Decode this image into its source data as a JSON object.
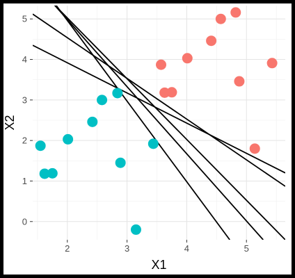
{
  "chart_data": {
    "type": "scatter",
    "xlabel": "X1",
    "ylabel": "X2",
    "xlim": [
      1.42,
      5.65
    ],
    "ylim": [
      -0.45,
      5.33
    ],
    "x_ticks": [
      2,
      3,
      4,
      5
    ],
    "y_ticks": [
      0,
      1,
      2,
      3,
      4,
      5
    ],
    "x_tick_labels": [
      "2",
      "3",
      "4",
      "5"
    ],
    "y_tick_labels": [
      "0",
      "1",
      "2",
      "3",
      "4",
      "5"
    ],
    "grid": true,
    "legend": "none",
    "series": [
      {
        "color": "#00bfc4",
        "points": [
          {
            "x": 1.55,
            "y": 1.87
          },
          {
            "x": 1.62,
            "y": 1.18
          },
          {
            "x": 1.75,
            "y": 1.19
          },
          {
            "x": 2.01,
            "y": 2.03
          },
          {
            "x": 2.42,
            "y": 2.46
          },
          {
            "x": 2.58,
            "y": 3.0
          },
          {
            "x": 2.84,
            "y": 3.17
          },
          {
            "x": 2.89,
            "y": 1.45
          },
          {
            "x": 3.15,
            "y": -0.2
          },
          {
            "x": 3.44,
            "y": 1.92
          }
        ]
      },
      {
        "color": "#f8766d",
        "points": [
          {
            "x": 3.57,
            "y": 3.87
          },
          {
            "x": 3.63,
            "y": 3.18
          },
          {
            "x": 3.75,
            "y": 3.19
          },
          {
            "x": 4.01,
            "y": 4.03
          },
          {
            "x": 4.41,
            "y": 4.46
          },
          {
            "x": 4.57,
            "y": 5.0
          },
          {
            "x": 4.82,
            "y": 5.16
          },
          {
            "x": 4.88,
            "y": 3.46
          },
          {
            "x": 5.14,
            "y": 1.8
          },
          {
            "x": 5.43,
            "y": 3.91
          }
        ]
      }
    ],
    "lines": [
      {
        "x1": 1.42,
        "y1": 4.35,
        "x2": 5.65,
        "y2": 1.2
      },
      {
        "x1": 1.42,
        "y1": 5.12,
        "x2": 5.65,
        "y2": 0.87
      },
      {
        "x1": 1.75,
        "y1": 5.4,
        "x2": 5.65,
        "y2": -0.45
      },
      {
        "x1": 1.75,
        "y1": 5.4,
        "x2": 5.28,
        "y2": -0.45
      },
      {
        "x1": 1.78,
        "y1": 5.4,
        "x2": 4.72,
        "y2": -0.45
      }
    ],
    "line_color": "#000000"
  }
}
